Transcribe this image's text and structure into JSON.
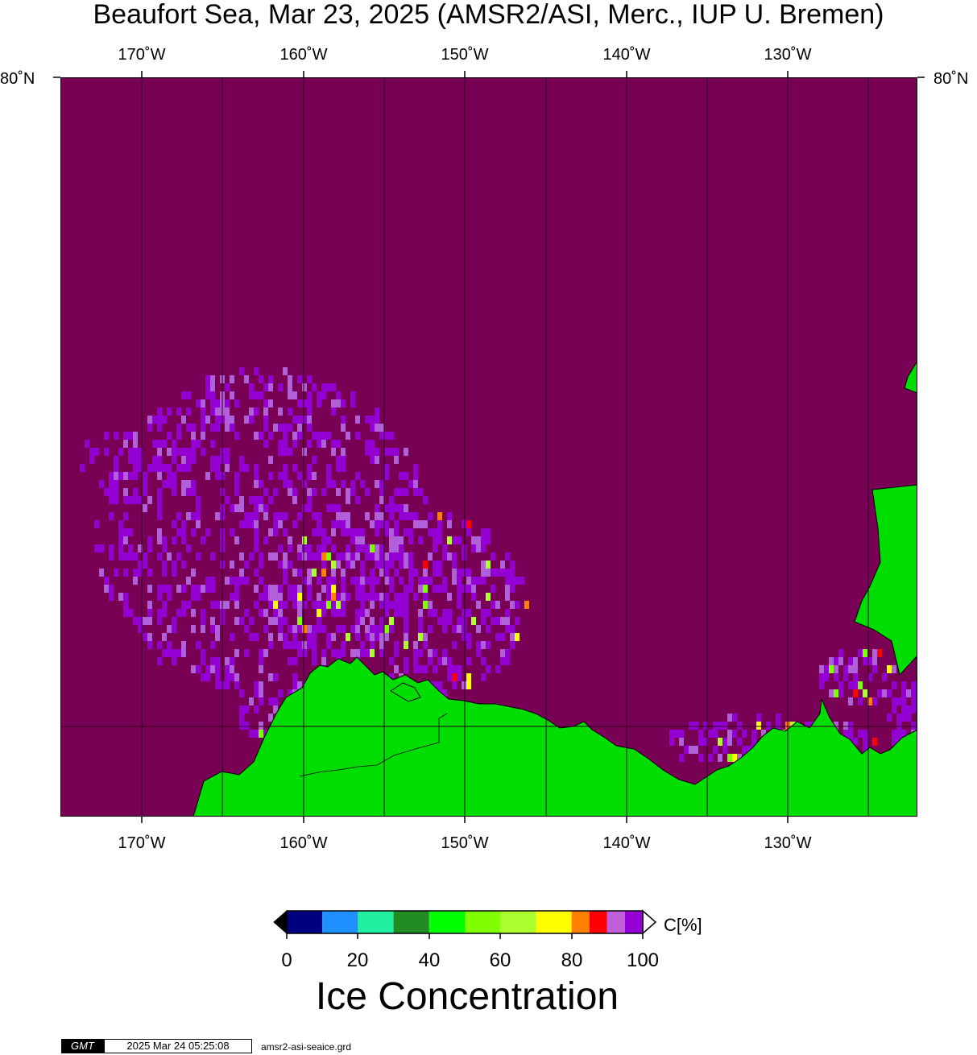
{
  "title": "Beaufort Sea, Mar 23, 2025 (AMSR2/ASI, Merc., IUP U. Bremen)",
  "lon_labels": [
    "170˚W",
    "160˚W",
    "150˚W",
    "140˚W",
    "130˚W"
  ],
  "lat_labels": [
    "80˚N",
    "80˚N"
  ],
  "colors": {
    "ocean_ice_100": "#780055",
    "ice_high": "#9400d3",
    "ice_mid": "#b060d8",
    "land": "#00dd00",
    "grid": "#2a0020"
  },
  "colorbar": {
    "ticks": [
      "0",
      "20",
      "40",
      "60",
      "80",
      "100"
    ],
    "unit": "C[%]",
    "title": "Ice Concentration",
    "bins": [
      {
        "from": 0,
        "to": 10,
        "color": "#000080"
      },
      {
        "from": 10,
        "to": 20,
        "color": "#1e90ff"
      },
      {
        "from": 20,
        "to": 30,
        "color": "#20f0a0"
      },
      {
        "from": 30,
        "to": 40,
        "color": "#228b22"
      },
      {
        "from": 40,
        "to": 50,
        "color": "#00ff00"
      },
      {
        "from": 50,
        "to": 60,
        "color": "#7fff00"
      },
      {
        "from": 60,
        "to": 70,
        "color": "#adff2f"
      },
      {
        "from": 70,
        "to": 80,
        "color": "#ffff00"
      },
      {
        "from": 80,
        "to": 85,
        "color": "#ff8000"
      },
      {
        "from": 85,
        "to": 90,
        "color": "#ff0000"
      },
      {
        "from": 90,
        "to": 95,
        "color": "#c060d8"
      },
      {
        "from": 95,
        "to": 100,
        "color": "#9400d3"
      }
    ],
    "under_color": "#000000",
    "over_color": "#ffffff"
  },
  "footer": {
    "logo": "GMT",
    "timestamp": "2025 Mar 24 05:25:08",
    "filename": "amsr2-asi-seaice.grd"
  }
}
